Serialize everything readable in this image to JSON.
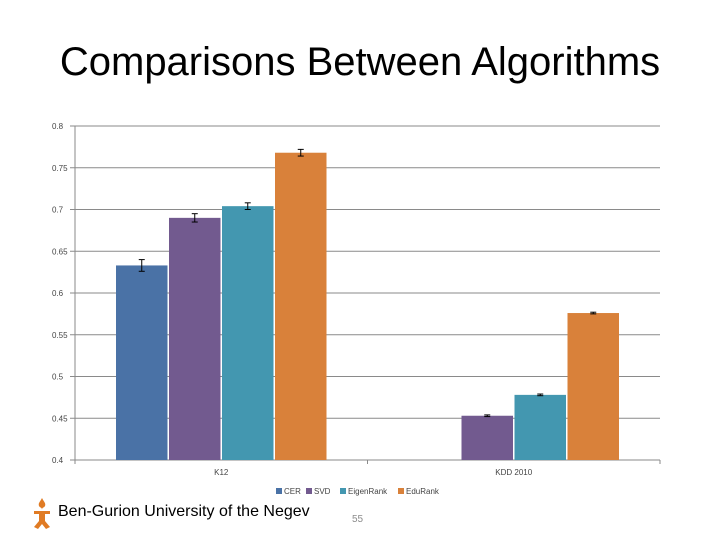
{
  "slide": {
    "title": "Comparisons Between Algorithms",
    "footer": "Ben-Gurion University of the Negev",
    "page_number": "55"
  },
  "chart_data": {
    "type": "bar",
    "categories": [
      "K12",
      "KDD 2010"
    ],
    "ylim": [
      0.4,
      0.8
    ],
    "yticks": [
      "0.4",
      "0.45",
      "0.5",
      "0.55",
      "0.6",
      "0.65",
      "0.7",
      "0.75",
      "0.8"
    ],
    "grid": true,
    "legend_position": "bottom",
    "series": [
      {
        "name": "CER",
        "color": "#4a72a6",
        "values": [
          0.633,
          null
        ],
        "error": [
          0.007,
          null
        ]
      },
      {
        "name": "SVD",
        "color": "#725a8f",
        "values": [
          0.69,
          0.453
        ],
        "error": [
          0.005,
          0.001
        ]
      },
      {
        "name": "EigenRank",
        "color": "#4397b0",
        "values": [
          0.704,
          0.478
        ],
        "error": [
          0.004,
          0.001
        ]
      },
      {
        "name": "EduRank",
        "color": "#d9813a",
        "values": [
          0.768,
          0.576
        ],
        "error": [
          0.004,
          0.001
        ]
      }
    ]
  }
}
